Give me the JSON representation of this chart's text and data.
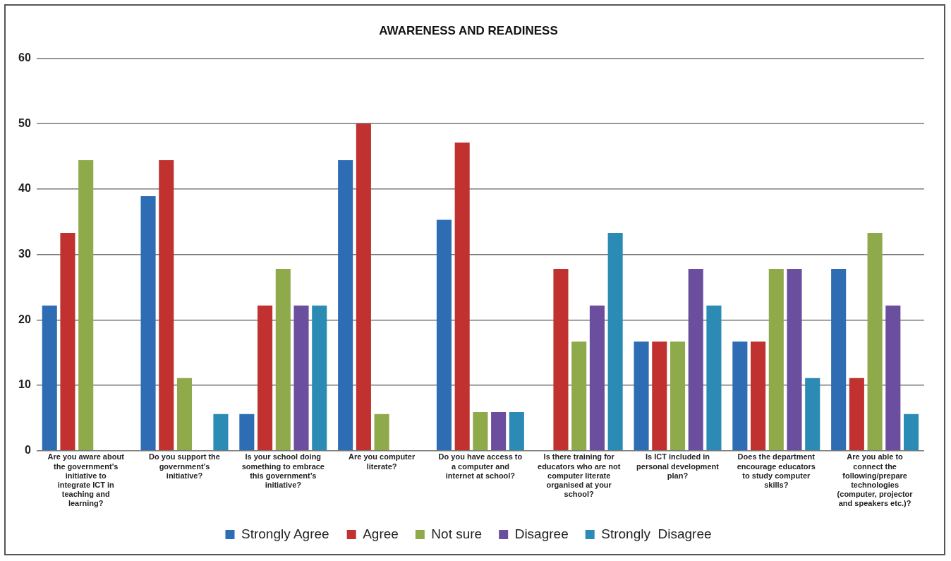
{
  "chart_data": {
    "type": "bar",
    "title": "AWARENESS AND READINESS",
    "categories": [
      "Are you aware about the government’s initiative to integrate ICT in teaching and learning?",
      "Do you support the government’s initiative?",
      "Is your school doing something to embrace this government’s initiative?",
      "Are you computer literate?",
      "Do you have access to a computer and internet at school?",
      "Is there training for educators who are not computer literate organised at your school?",
      "Is ICT included in personal development plan?",
      "Does the department encourage educators to study computer skills?",
      "Are you able to connect the following/prepare technologies (computer, projector and speakers etc.)?"
    ],
    "series": [
      {
        "name": "Strongly Agree",
        "color": "#2e6db4",
        "values": [
          22.2,
          38.9,
          5.6,
          44.4,
          35.3,
          0,
          16.7,
          16.7,
          27.8
        ]
      },
      {
        "name": "Agree",
        "color": "#c0312f",
        "values": [
          33.3,
          44.4,
          22.2,
          50,
          47.1,
          27.8,
          16.7,
          16.7,
          11.1
        ]
      },
      {
        "name": "Not sure",
        "color": "#8faa4a",
        "values": [
          44.4,
          11.1,
          27.8,
          5.6,
          5.9,
          16.7,
          16.7,
          27.8,
          33.3
        ]
      },
      {
        "name": "Disagree",
        "color": "#6b4f9e",
        "values": [
          0,
          0,
          22.2,
          0,
          5.9,
          22.2,
          27.8,
          27.8,
          22.2
        ]
      },
      {
        "name": "Strongly  Disagree",
        "color": "#2b8bb4",
        "values": [
          0,
          5.6,
          22.2,
          0,
          5.9,
          33.3,
          22.2,
          11.1,
          5.6
        ]
      }
    ],
    "ylim": [
      0,
      60
    ],
    "yticks": [
      0,
      10,
      20,
      30,
      40,
      50,
      60
    ],
    "grid": "y",
    "legend": "bottom"
  }
}
